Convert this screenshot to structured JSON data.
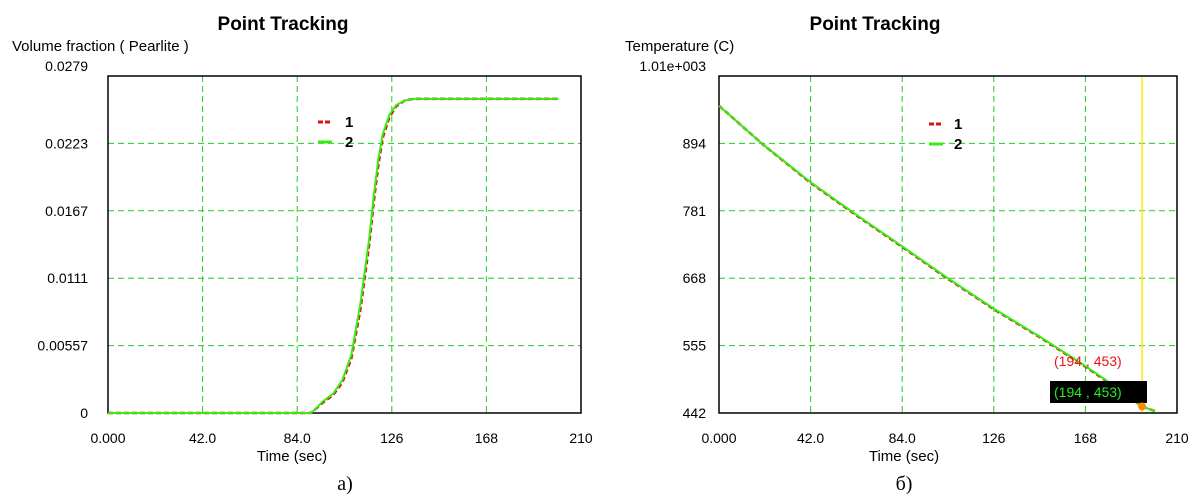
{
  "colors": {
    "series1": "#dd1111",
    "series2": "#33ee11",
    "grid": "#22cc22",
    "cursor": "#ffee00",
    "annotation_red": "#ee1111",
    "annotation_green": "#22ee22",
    "annotation_bg": "#000000",
    "marker": "#ff8800"
  },
  "chart_data": [
    {
      "type": "line",
      "title": "Point Tracking",
      "ylabel": "Volume fraction ( Pearlite )",
      "xlabel": "Time (sec)",
      "xlim": [
        0,
        210
      ],
      "ylim": [
        0,
        0.0279
      ],
      "xticks": [
        "0.000",
        "42.0",
        "84.0",
        "126",
        "168",
        "210"
      ],
      "yticks": [
        "0",
        "0.00557",
        "0.0111",
        "0.0167",
        "0.0223",
        "0.0279"
      ],
      "grid": true,
      "legend": [
        "1",
        "2"
      ],
      "series": [
        {
          "name": "1",
          "color": "series1",
          "x": [
            0,
            90,
            92,
            95,
            100,
            104,
            108,
            112,
            116,
            118,
            120,
            122,
            125,
            128,
            132,
            136,
            200
          ],
          "y": [
            0,
            0,
            0.0003,
            0.0008,
            0.0015,
            0.0025,
            0.0045,
            0.0085,
            0.014,
            0.0175,
            0.0205,
            0.0228,
            0.0245,
            0.0254,
            0.0259,
            0.026,
            0.026
          ]
        },
        {
          "name": "2",
          "color": "series2",
          "x": [
            0,
            90,
            92,
            95,
            100,
            104,
            108,
            112,
            116,
            118,
            120,
            122,
            125,
            128,
            132,
            136,
            200
          ],
          "y": [
            0,
            0,
            0.0003,
            0.0009,
            0.0016,
            0.0027,
            0.0048,
            0.009,
            0.0145,
            0.018,
            0.021,
            0.0231,
            0.0247,
            0.0255,
            0.0259,
            0.026,
            0.026
          ]
        }
      ]
    },
    {
      "type": "line",
      "title": "Point Tracking",
      "ylabel": "Temperature (C)",
      "xlabel": "Time (sec)",
      "xlim": [
        0,
        210
      ],
      "ylim": [
        442,
        1010
      ],
      "xticks": [
        "0.000",
        "42.0",
        "84.0",
        "126",
        "168",
        "210"
      ],
      "yticks": [
        "442",
        "555",
        "668",
        "781",
        "894",
        "1.01e+003"
      ],
      "grid": true,
      "legend": [
        "1",
        "2"
      ],
      "cursor_x": 194,
      "marker": [
        194,
        453
      ],
      "annotations": [
        "(194 , 453)",
        "(194 , 453)"
      ],
      "series": [
        {
          "name": "1",
          "color": "series1",
          "x": [
            0,
            20,
            42,
            63,
            84,
            105,
            126,
            147,
            168,
            184,
            194,
            200
          ],
          "y": [
            960,
            895,
            830,
            775,
            722,
            668,
            617,
            570,
            520,
            480,
            453,
            445
          ]
        },
        {
          "name": "2",
          "color": "series2",
          "x": [
            0,
            20,
            42,
            63,
            84,
            105,
            126,
            147,
            168,
            184,
            194,
            200
          ],
          "y": [
            960,
            895,
            831,
            776,
            723,
            669,
            618,
            571,
            521,
            481,
            453,
            445
          ]
        }
      ]
    }
  ],
  "captions": [
    "а)",
    "б)"
  ]
}
